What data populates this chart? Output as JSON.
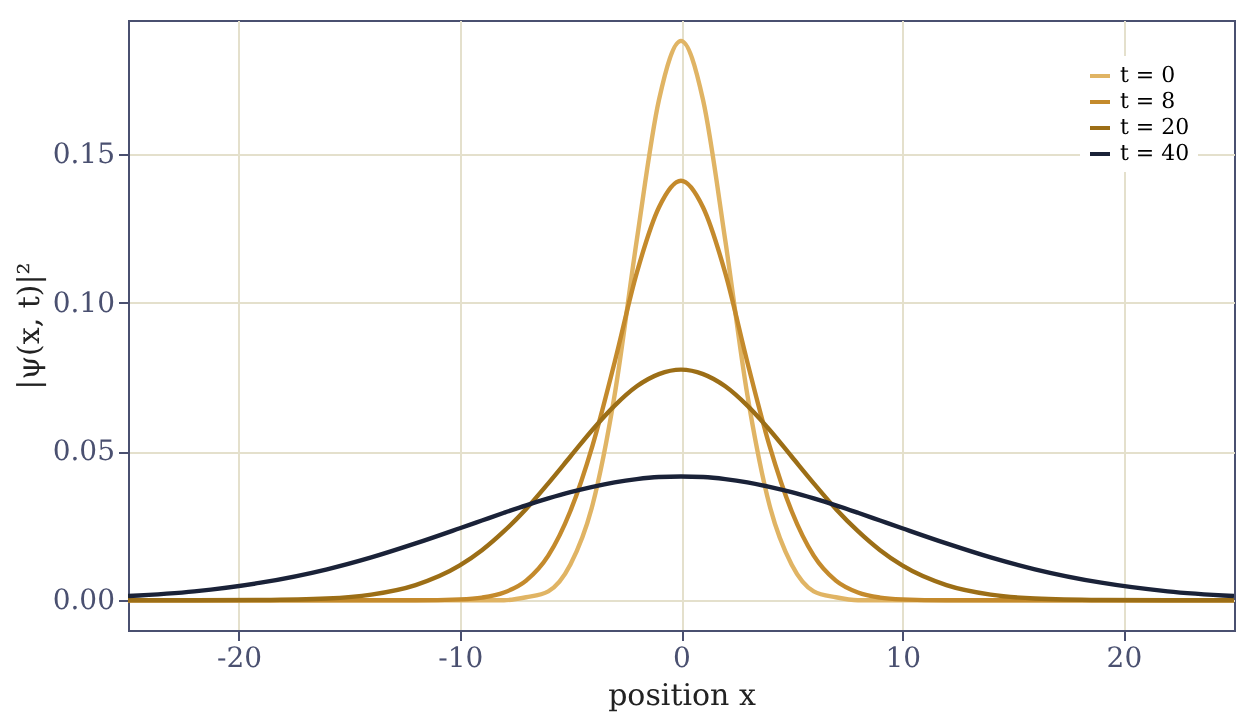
{
  "chart_data": {
    "type": "line",
    "xlabel": "position x",
    "ylabel": "|ψ(x, t)|²",
    "x": [
      -25,
      -22,
      -19,
      -16,
      -14,
      -12,
      -10,
      -9,
      -8,
      -7,
      -6,
      -5,
      -4,
      -3,
      -2,
      -1,
      0,
      1,
      2,
      3,
      4,
      5,
      6,
      7,
      8,
      9,
      10,
      12,
      14,
      16,
      19,
      22,
      25
    ],
    "series": [
      {
        "name": "t = 0",
        "color": "#e0b464",
        "values": [
          0,
          0,
          0,
          0,
          0,
          0,
          0,
          0,
          0,
          0.001,
          0.003,
          0.012,
          0.032,
          0.069,
          0.121,
          0.168,
          0.188,
          0.168,
          0.121,
          0.069,
          0.032,
          0.012,
          0.003,
          0.001,
          0,
          0,
          0,
          0,
          0,
          0,
          0,
          0,
          0
        ]
      },
      {
        "name": "t = 8",
        "color": "#c48a2c",
        "values": [
          0,
          0,
          0,
          0,
          0,
          0,
          0.0003,
          0.0009,
          0.0026,
          0.0066,
          0.015,
          0.03,
          0.052,
          0.08,
          0.11,
          0.132,
          0.141,
          0.132,
          0.11,
          0.08,
          0.052,
          0.03,
          0.015,
          0.0066,
          0.0026,
          0.0009,
          0.0003,
          0,
          0,
          0,
          0,
          0,
          0
        ]
      },
      {
        "name": "t = 20",
        "color": "#9c6e16",
        "values": [
          0,
          0,
          0.0001,
          0.0006,
          0.0019,
          0.0051,
          0.0117,
          0.0168,
          0.0232,
          0.0307,
          0.0393,
          0.0483,
          0.0573,
          0.0654,
          0.0719,
          0.076,
          0.0775,
          0.076,
          0.0719,
          0.0654,
          0.0573,
          0.0483,
          0.0393,
          0.0307,
          0.0232,
          0.0168,
          0.0117,
          0.0051,
          0.0019,
          0.0006,
          0.0001,
          0,
          0
        ]
      },
      {
        "name": "t = 40",
        "color": "#1a2238",
        "values": [
          0.0014,
          0.003,
          0.0059,
          0.0104,
          0.0144,
          0.0191,
          0.0242,
          0.0268,
          0.0294,
          0.0319,
          0.0342,
          0.0363,
          0.0381,
          0.0396,
          0.0407,
          0.0414,
          0.0416,
          0.0414,
          0.0407,
          0.0396,
          0.0381,
          0.0363,
          0.0342,
          0.0319,
          0.0294,
          0.0268,
          0.0242,
          0.0191,
          0.0144,
          0.0104,
          0.0059,
          0.003,
          0.0014
        ]
      }
    ],
    "xlim": [
      -25,
      25
    ],
    "ylim": [
      -0.01,
      0.195
    ],
    "xticks": [
      -20,
      -10,
      0,
      10,
      20
    ],
    "yticks": [
      {
        "value": 0,
        "label": "0.00"
      },
      {
        "value": 0.05,
        "label": "0.05"
      },
      {
        "value": 0.1,
        "label": "0.10"
      },
      {
        "value": 0.15,
        "label": "0.15"
      }
    ],
    "grid": true,
    "legend": "top right"
  }
}
